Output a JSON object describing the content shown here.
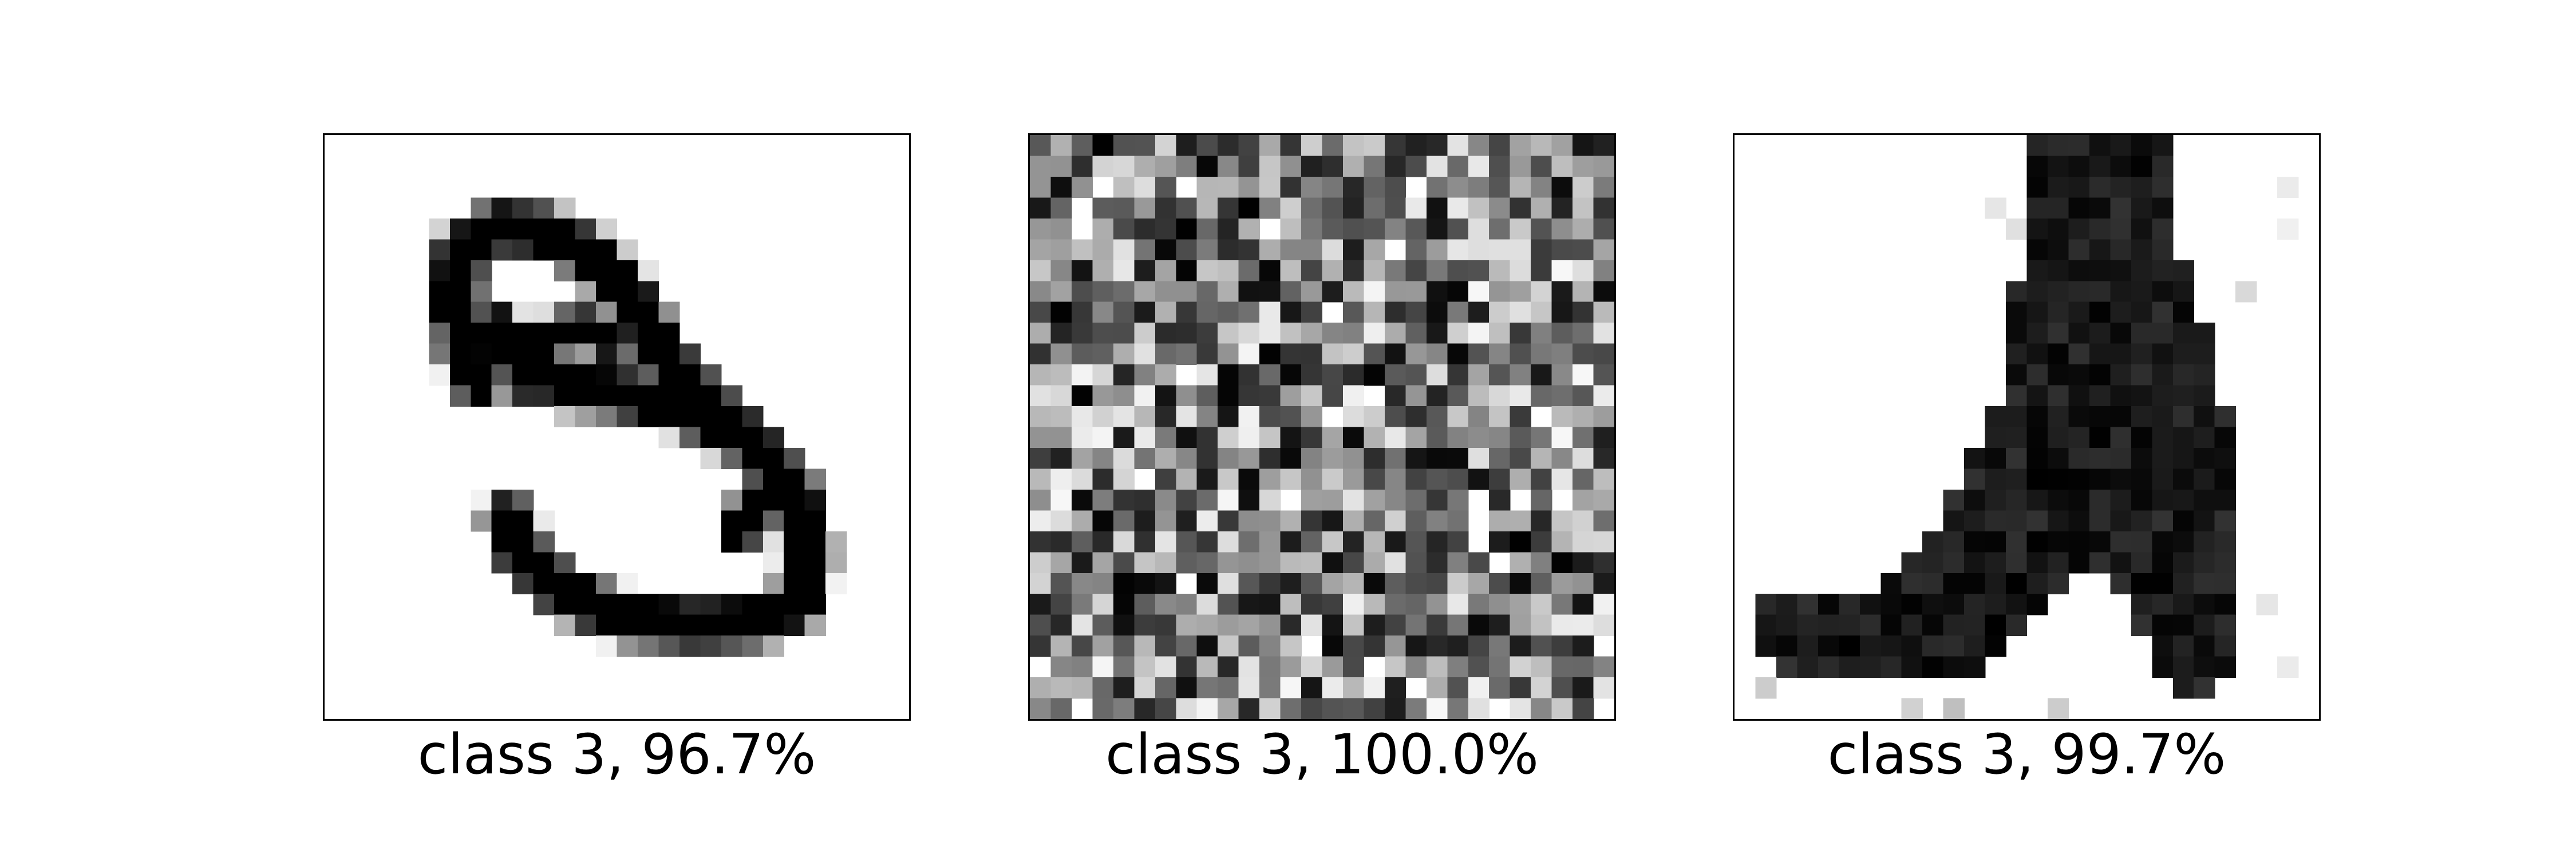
{
  "figure": {
    "panels": [
      {
        "subject": "handwritten-digit-three",
        "caption": "class 3, 96.7%"
      },
      {
        "subject": "random-noise",
        "caption": "class 3, 100.0%"
      },
      {
        "subject": "ankle-boot",
        "caption": "class 3, 99.7%"
      }
    ]
  },
  "colors": {
    "ink": "#000000",
    "background": "#ffffff",
    "frame": "#000000"
  }
}
